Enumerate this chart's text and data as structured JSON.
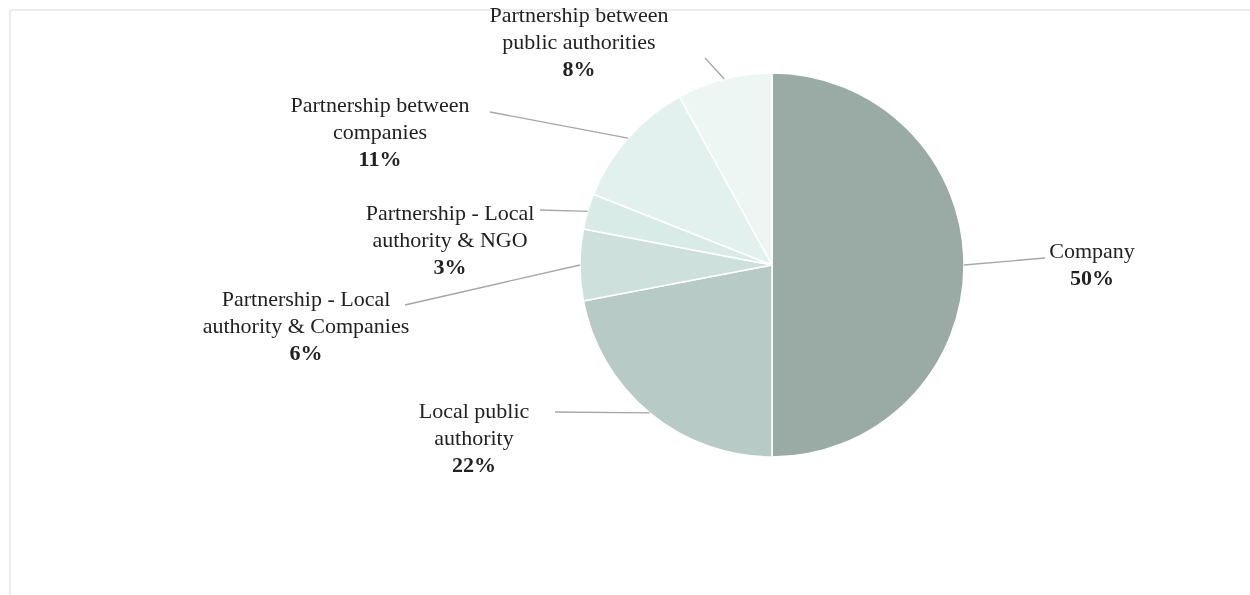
{
  "chart_data": {
    "type": "pie",
    "categories": [
      "Company",
      "Local public authority",
      "Partnership - Local authority & Companies",
      "Partnership - Local authority & NGO",
      "Partnership between companies",
      "Partnership between public authorities"
    ],
    "values": [
      50,
      22,
      6,
      3,
      11,
      8
    ],
    "colors": [
      "#9aaba6",
      "#b8cac5",
      "#cde0db",
      "#d9ebe6",
      "#e3f1ee",
      "#eef6f4"
    ],
    "value_labels": [
      "50%",
      "22%",
      "6%",
      "3%",
      "11%",
      "8%"
    ]
  }
}
